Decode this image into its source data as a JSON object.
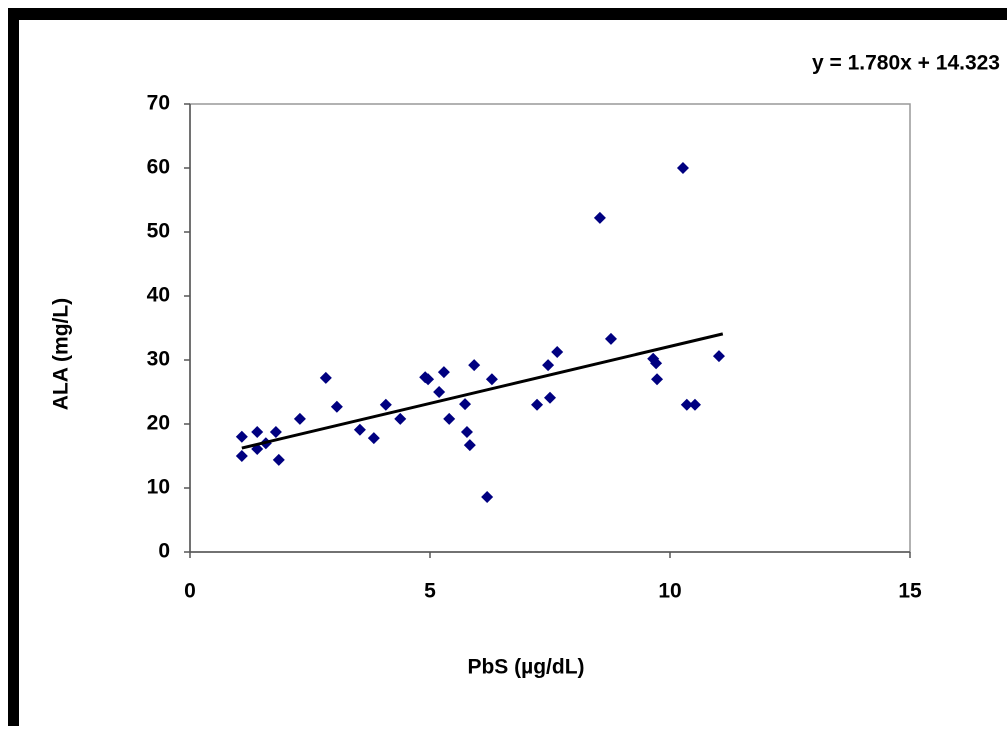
{
  "chart_data": {
    "type": "scatter",
    "x_label": "PbS (µg/dL)",
    "y_label": "ALA (mg/L)",
    "xlim": [
      0,
      15
    ],
    "xticks": [
      0,
      5,
      10,
      15
    ],
    "ylim": [
      0,
      70
    ],
    "yticks": [
      0,
      10,
      20,
      30,
      40,
      50,
      60,
      70
    ],
    "color": "#000080",
    "x": [
      1.08,
      1.08,
      1.4,
      1.4,
      1.58,
      1.79,
      1.85,
      2.29,
      2.83,
      3.06,
      3.54,
      3.83,
      4.08,
      4.38,
      4.9,
      4.96,
      5.19,
      5.29,
      5.4,
      5.73,
      5.77,
      5.83,
      5.92,
      6.19,
      6.29,
      7.23,
      7.46,
      7.5,
      7.65,
      8.54,
      8.77,
      9.65,
      9.71,
      9.73,
      10.27,
      10.35,
      10.52,
      11.02
    ],
    "values": [
      18,
      15,
      18.75,
      16.1,
      17,
      18.75,
      14.4,
      20.8,
      27.2,
      22.7,
      19.1,
      17.8,
      23,
      20.8,
      27.3,
      27,
      25,
      28.1,
      20.8,
      23.1,
      18.75,
      16.7,
      29.2,
      8.6,
      27,
      23,
      29.2,
      24.1,
      31.25,
      52.2,
      33.3,
      30.2,
      29.5,
      27,
      60,
      23,
      23,
      30.6
    ],
    "trendline": {
      "label": "y = 1.780x + 14.323",
      "slope": 1.78,
      "intercept": 14.323,
      "x": [
        1.08,
        11.1
      ]
    }
  }
}
